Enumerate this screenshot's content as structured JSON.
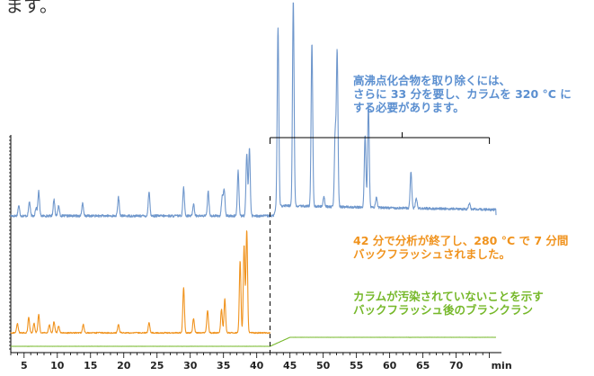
{
  "page": {
    "top_text": "ます。"
  },
  "annotations": {
    "blue": {
      "lines": [
        "高沸点化合物を取り除くには、",
        "さらに 33 分を要し、カラムを 320 °C に",
        "する必要があります。"
      ],
      "color": "#5b8fd0"
    },
    "orange": {
      "lines": [
        "42 分で分析が終了し、280 °C で 7 分間",
        "バックフラッシュされました。"
      ],
      "color": "#f0931e"
    },
    "green": {
      "lines": [
        "カラムが汚染されていないことを示す",
        "バックフラッシュ後のブランクラン"
      ],
      "color": "#76b82a"
    }
  },
  "chart_data": {
    "type": "line",
    "x_ticks": [
      "5",
      "10",
      "15",
      "20",
      "25",
      "30",
      "35",
      "40",
      "45",
      "50",
      "55",
      "60",
      "65",
      "70"
    ],
    "x_unit": "min",
    "xlim": [
      3,
      76
    ],
    "marker_x": 42,
    "bracket_range": [
      42,
      75
    ],
    "colors": {
      "blue": "#6f97cc",
      "orange": "#f0931e",
      "green": "#76b82a",
      "axis": "#000000"
    },
    "series": [
      {
        "color": "#6f97cc",
        "baseline": 0.0,
        "noise": 0.006,
        "peaks": [
          [
            4.2,
            0.05
          ],
          [
            5.8,
            0.07
          ],
          [
            6.8,
            0.04
          ],
          [
            7.2,
            0.12
          ],
          [
            9.5,
            0.08
          ],
          [
            10.2,
            0.05
          ],
          [
            13.8,
            0.06
          ],
          [
            19.2,
            0.09
          ],
          [
            23.8,
            0.12
          ],
          [
            29.0,
            0.14
          ],
          [
            30.5,
            0.06
          ],
          [
            32.7,
            0.12
          ],
          [
            34.8,
            0.09
          ],
          [
            35.1,
            0.13
          ],
          [
            37.2,
            0.22
          ],
          [
            38.5,
            0.3
          ],
          [
            38.9,
            0.33
          ],
          [
            43.2,
            0.87
          ],
          [
            45.5,
            1.0
          ],
          [
            48.3,
            0.8
          ],
          [
            50.1,
            0.05
          ],
          [
            51.8,
            0.35
          ],
          [
            52.1,
            0.75
          ],
          [
            56.3,
            0.35
          ],
          [
            56.8,
            0.5
          ],
          [
            58.0,
            0.05
          ],
          [
            63.2,
            0.18
          ],
          [
            64.0,
            0.05
          ],
          [
            72.0,
            0.03
          ]
        ],
        "hump": {
          "start": 42.5,
          "end": 76,
          "level": 0.05
        }
      },
      {
        "color": "#f0931e",
        "baseline": 0.0,
        "noise": 0.006,
        "peaks": [
          [
            4.0,
            0.09
          ],
          [
            5.7,
            0.15
          ],
          [
            6.5,
            0.09
          ],
          [
            7.2,
            0.18
          ],
          [
            8.8,
            0.08
          ],
          [
            9.5,
            0.11
          ],
          [
            10.2,
            0.07
          ],
          [
            13.9,
            0.08
          ],
          [
            19.2,
            0.08
          ],
          [
            23.8,
            0.1
          ],
          [
            29.0,
            0.44
          ],
          [
            30.5,
            0.14
          ],
          [
            32.6,
            0.22
          ],
          [
            34.7,
            0.23
          ],
          [
            35.2,
            0.33
          ],
          [
            37.5,
            0.7
          ],
          [
            38.1,
            0.85
          ],
          [
            38.5,
            1.0
          ]
        ],
        "cut_x": 42
      },
      {
        "color": "#76b82a",
        "baseline": 0.0,
        "noise": 0.002,
        "peaks": [],
        "step": {
          "at": 42,
          "width": 3.0,
          "level": 1.0
        }
      }
    ]
  }
}
